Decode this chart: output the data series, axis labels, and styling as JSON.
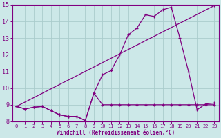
{
  "background_color": "#cce8e8",
  "grid_color": "#aacccc",
  "line_color": "#800080",
  "xlim": [
    -0.5,
    23.5
  ],
  "ylim": [
    8,
    15
  ],
  "xlabel": "Windchill (Refroidissement éolien,°C)",
  "xticks": [
    0,
    1,
    2,
    3,
    4,
    5,
    6,
    7,
    8,
    9,
    10,
    11,
    12,
    13,
    14,
    15,
    16,
    17,
    18,
    19,
    20,
    21,
    22,
    23
  ],
  "yticks": [
    8,
    9,
    10,
    11,
    12,
    13,
    14,
    15
  ],
  "line1_x": [
    0,
    1,
    2,
    3,
    4,
    5,
    6,
    7,
    8,
    9,
    10,
    11,
    12,
    13,
    14,
    15,
    16,
    17,
    18,
    19,
    20,
    21,
    22,
    23
  ],
  "line1_y": [
    8.9,
    8.75,
    8.85,
    8.9,
    8.65,
    8.4,
    8.3,
    8.3,
    8.05,
    9.7,
    9.0,
    9.0,
    9.0,
    9.0,
    9.0,
    9.0,
    9.0,
    9.0,
    9.0,
    9.0,
    9.0,
    9.0,
    9.0,
    9.0
  ],
  "line2_x": [
    0,
    1,
    2,
    3,
    4,
    5,
    6,
    7,
    8,
    9,
    10,
    11,
    12,
    13,
    14,
    15,
    16,
    17,
    18,
    19,
    20,
    21,
    22,
    23
  ],
  "line2_y": [
    8.9,
    8.75,
    8.85,
    8.9,
    8.65,
    8.4,
    8.3,
    8.3,
    8.05,
    9.7,
    10.8,
    11.05,
    12.0,
    13.2,
    13.6,
    14.4,
    14.3,
    14.7,
    14.85,
    13.0,
    11.0,
    8.7,
    9.05,
    9.1
  ],
  "line3_x": [
    0,
    23
  ],
  "line3_y": [
    8.9,
    14.95
  ],
  "lw": 0.9,
  "ms": 3.0
}
